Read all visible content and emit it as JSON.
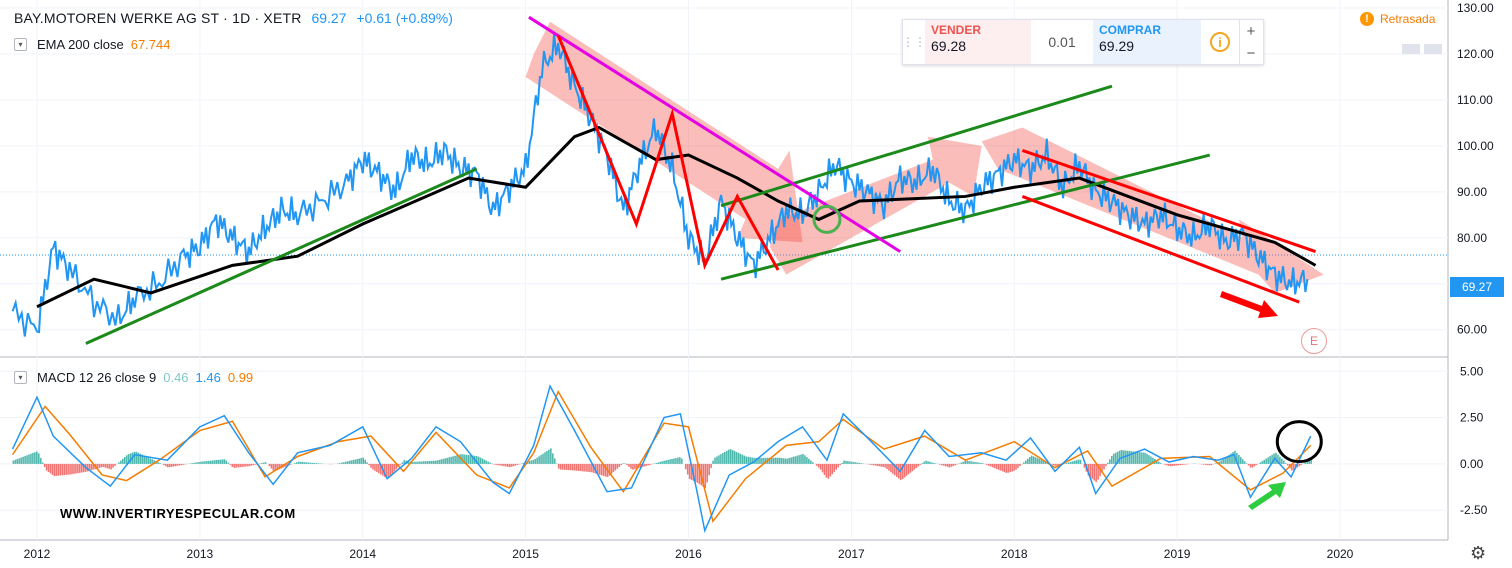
{
  "header": {
    "symbol": "BAY.MOTOREN WERKE AG ST · 1D · XETR",
    "last_price": "69.27",
    "change": "+0.61 (+0.89%)"
  },
  "ema": {
    "label": "EMA 200 close",
    "value": "67.744",
    "color": "#f57c00"
  },
  "macd": {
    "label": "MACD 12 26 close 9",
    "hist": "0.46",
    "macd": "1.46",
    "signal": "0.99",
    "hist_color": "#80cbc4",
    "macd_color": "#2196f3",
    "signal_color": "#f57c00"
  },
  "trade_panel": {
    "sell_label": "VENDER",
    "sell_price": "69.28",
    "spread": "0.01",
    "buy_label": "COMPRAR",
    "buy_price": "69.29",
    "info_icon": "i",
    "plus": "+",
    "minus": "−"
  },
  "delayed": {
    "icon": "!",
    "label": "Retrasada"
  },
  "price_tag": "69.27",
  "earnings_badge": "E",
  "watermark": "WWW.INVERTIRYESPECULAR.COM",
  "chart_data": [
    {
      "type": "line",
      "series_color": "#2196f3",
      "x_axis_ticks": [
        "2012",
        "2013",
        "2014",
        "2015",
        "2016",
        "2017",
        "2018",
        "2019",
        "2020"
      ],
      "y_axis_ticks": [
        "60.00",
        "70.00",
        "80.00",
        "90.00",
        "100.00",
        "110.00",
        "120.00",
        "130.00"
      ],
      "ylim": [
        54.5,
        130
      ],
      "price": {
        "x": [
          2011.85,
          2012.0,
          2012.1,
          2012.2,
          2012.35,
          2012.5,
          2012.6,
          2012.75,
          2012.9,
          2013.0,
          2013.1,
          2013.2,
          2013.3,
          2013.4,
          2013.5,
          2013.6,
          2013.75,
          2013.9,
          2014.0,
          2014.1,
          2014.2,
          2014.3,
          2014.4,
          2014.5,
          2014.6,
          2014.7,
          2014.8,
          2014.9,
          2015.0,
          2015.1,
          2015.2,
          2015.3,
          2015.4,
          2015.5,
          2015.6,
          2015.7,
          2015.8,
          2015.9,
          2016.0,
          2016.1,
          2016.2,
          2016.3,
          2016.4,
          2016.5,
          2016.6,
          2016.7,
          2016.8,
          2016.9,
          2017.0,
          2017.1,
          2017.2,
          2017.3,
          2017.4,
          2017.5,
          2017.6,
          2017.7,
          2017.8,
          2017.9,
          2018.0,
          2018.1,
          2018.2,
          2018.3,
          2018.4,
          2018.5,
          2018.6,
          2018.7,
          2018.8,
          2018.9,
          2019.0,
          2019.1,
          2019.2,
          2019.3,
          2019.4,
          2019.5,
          2019.6,
          2019.7,
          2019.8
        ],
        "y": [
          64,
          60,
          78,
          73,
          66,
          62,
          67,
          70,
          76,
          78,
          84,
          80,
          77,
          82,
          86,
          85,
          88,
          92,
          97,
          94,
          90,
          98,
          96,
          99,
          95,
          94,
          86,
          91,
          95,
          117,
          122,
          113,
          106,
          98,
          86,
          96,
          104,
          95,
          80,
          75,
          88,
          80,
          74,
          80,
          86,
          85,
          90,
          96,
          92,
          90,
          87,
          93,
          92,
          95,
          88,
          86,
          91,
          94,
          97,
          95,
          98,
          91,
          96,
          90,
          88,
          85,
          83,
          85,
          82,
          80,
          83,
          79,
          81,
          76,
          72,
          70,
          71
        ]
      },
      "ema200": {
        "x": [
          2012.0,
          2012.35,
          2012.7,
          2013.2,
          2013.6,
          2014.0,
          2014.65,
          2015.0,
          2015.3,
          2015.45,
          2015.8,
          2016.0,
          2016.3,
          2016.55,
          2016.8,
          2017.05,
          2017.7,
          2018.0,
          2018.4,
          2019.0,
          2019.6,
          2019.85
        ],
        "y": [
          65,
          71,
          68,
          74,
          76,
          83,
          93,
          91,
          102,
          104,
          97,
          98,
          93,
          88,
          84,
          88,
          89,
          91,
          93,
          85,
          79,
          74
        ]
      },
      "annotation_lines": [
        {
          "color": "#1b8a1b",
          "x": [
            2012.3,
            2014.7
          ],
          "y": [
            57,
            95
          ]
        },
        {
          "color": "#1b8a1b",
          "x": [
            2016.2,
            2019.2
          ],
          "y": [
            71,
            98
          ]
        },
        {
          "color": "#1b8a1b",
          "x": [
            2016.2,
            2018.6
          ],
          "y": [
            87,
            113
          ]
        },
        {
          "color": "#e400e4",
          "x": [
            2015.02,
            2017.3
          ],
          "y": [
            128,
            77
          ]
        },
        {
          "color": "#ff0000",
          "x": [
            2018.05,
            2019.85
          ],
          "y": [
            99,
            77
          ]
        },
        {
          "color": "#ff0000",
          "x": [
            2018.05,
            2019.75
          ],
          "y": [
            89,
            66
          ]
        },
        {
          "color": "#ff0000",
          "x": [
            2015.2,
            2015.68,
            2015.9,
            2016.1,
            2016.3,
            2016.55
          ],
          "y": [
            124,
            83,
            107,
            74,
            89,
            73
          ]
        }
      ],
      "green_circle": {
        "x": 2016.85,
        "y": 84
      },
      "black_circle": {
        "x": 2019.75,
        "y": 1.2
      }
    },
    {
      "type": "bar",
      "title": "MACD",
      "y_axis_ticks": [
        "5.00",
        "2.50",
        "0.00",
        "-2.50"
      ],
      "ylim": [
        -4,
        5.5
      ],
      "macd": {
        "x": [
          2011.85,
          2012.0,
          2012.1,
          2012.3,
          2012.45,
          2012.6,
          2012.8,
          2013.0,
          2013.15,
          2013.3,
          2013.45,
          2013.6,
          2013.8,
          2014.0,
          2014.15,
          2014.3,
          2014.45,
          2014.6,
          2014.8,
          2014.9,
          2015.05,
          2015.15,
          2015.3,
          2015.5,
          2015.65,
          2015.85,
          2015.95,
          2016.05,
          2016.1,
          2016.25,
          2016.4,
          2016.55,
          2016.7,
          2016.85,
          2016.95,
          2017.1,
          2017.3,
          2017.45,
          2017.6,
          2017.8,
          2017.95,
          2018.1,
          2018.25,
          2018.4,
          2018.5,
          2018.65,
          2018.8,
          2018.95,
          2019.1,
          2019.25,
          2019.35,
          2019.45,
          2019.6,
          2019.7,
          2019.82
        ],
        "y": [
          0.8,
          3.6,
          1.5,
          -0.2,
          -1.2,
          0.5,
          0.2,
          2.0,
          2.6,
          0.6,
          -1.1,
          0.6,
          1.0,
          2.0,
          -0.8,
          0.3,
          2.0,
          1.2,
          -1.0,
          -1.6,
          1.0,
          4.2,
          1.8,
          -1.5,
          -1.3,
          2.5,
          2.7,
          -1.4,
          -3.6,
          -0.6,
          0.1,
          1.2,
          2.0,
          0.2,
          2.7,
          1.4,
          -0.4,
          1.8,
          0.4,
          0.6,
          0.2,
          1.4,
          -0.4,
          0.9,
          -1.6,
          0.3,
          0.8,
          0.1,
          0.4,
          0.2,
          0.5,
          -1.8,
          0.3,
          -0.7,
          1.5
        ]
      },
      "signal": {
        "x": [
          2011.85,
          2012.05,
          2012.2,
          2012.4,
          2012.55,
          2012.75,
          2013.0,
          2013.2,
          2013.4,
          2013.6,
          2013.85,
          2014.05,
          2014.25,
          2014.45,
          2014.7,
          2014.9,
          2015.05,
          2015.2,
          2015.4,
          2015.6,
          2015.85,
          2016.0,
          2016.15,
          2016.35,
          2016.6,
          2016.8,
          2016.95,
          2017.2,
          2017.45,
          2017.7,
          2018.0,
          2018.25,
          2018.45,
          2018.6,
          2018.9,
          2019.2,
          2019.45,
          2019.65,
          2019.82
        ],
        "y": [
          0.5,
          3.1,
          1.6,
          -0.6,
          -0.9,
          0.2,
          1.8,
          2.3,
          -0.7,
          0.4,
          1.2,
          1.5,
          -0.4,
          1.7,
          -0.6,
          -1.3,
          0.6,
          3.9,
          0.9,
          -1.5,
          2.2,
          2.0,
          -3.1,
          -0.8,
          1.0,
          1.2,
          2.4,
          0.8,
          1.5,
          0.2,
          1.2,
          -0.2,
          0.7,
          -1.2,
          0.3,
          0.4,
          -1.4,
          -0.5,
          1.0
        ]
      },
      "histogram_colors": [
        "#26a69a",
        "#ef5350"
      ]
    }
  ]
}
